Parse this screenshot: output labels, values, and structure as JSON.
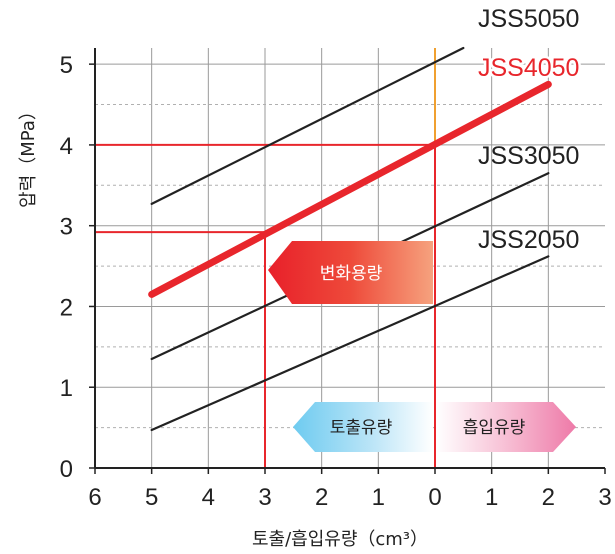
{
  "chart_data": {
    "type": "line",
    "xlabel": "토출/흡입유량（cm³）",
    "ylabel": "압력（MPa）",
    "xlim": [
      -6,
      3
    ],
    "ylim": [
      0,
      5.2
    ],
    "x_tick_labels": [
      "6",
      "5",
      "4",
      "3",
      "2",
      "1",
      "0",
      "1",
      "2",
      "3"
    ],
    "y_tick_labels": [
      "0",
      "1",
      "2",
      "3",
      "4",
      "5"
    ],
    "series": [
      {
        "name": "JSS5050",
        "color": "#222222",
        "highlight": false,
        "points": [
          [
            -5,
            3.27
          ],
          [
            0.5,
            5.2
          ]
        ]
      },
      {
        "name": "JSS4050",
        "color": "#e8262c",
        "highlight": true,
        "points": [
          [
            -5,
            2.15
          ],
          [
            2,
            4.75
          ]
        ]
      },
      {
        "name": "JSS3050",
        "color": "#222222",
        "highlight": false,
        "points": [
          [
            -5,
            1.35
          ],
          [
            2,
            3.65
          ]
        ]
      },
      {
        "name": "JSS2050",
        "color": "#222222",
        "highlight": false,
        "points": [
          [
            -5,
            0.47
          ],
          [
            2,
            2.62
          ]
        ]
      }
    ],
    "reference_lines": {
      "horizontal": [
        4,
        2.92
      ],
      "vertical": [
        -3
      ],
      "zero_line_color": "#f0a030"
    },
    "annotations": {
      "variable_capacity": "변화용량",
      "discharge_flow": "토출유량",
      "suction_flow": "흡입유량"
    }
  }
}
